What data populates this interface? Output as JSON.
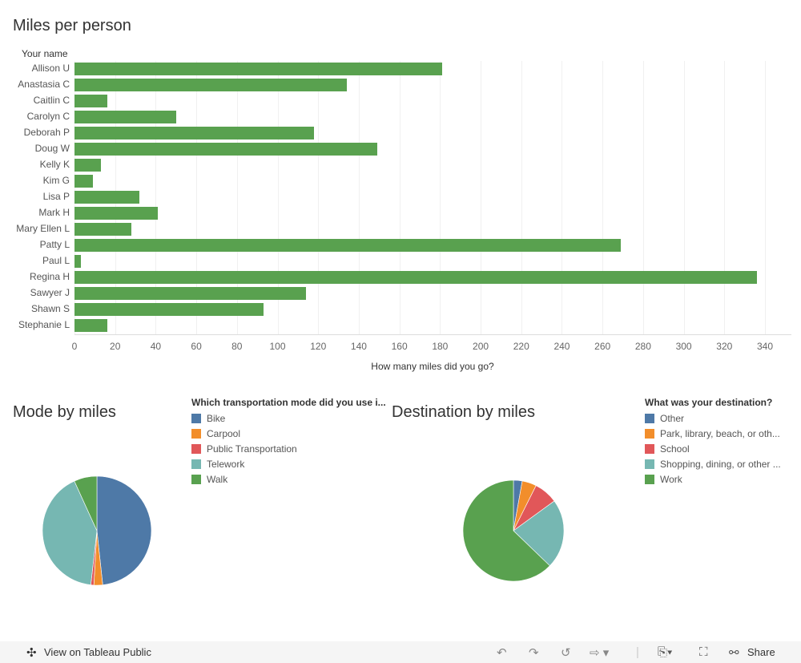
{
  "chart_data": [
    {
      "type": "bar",
      "title": "Miles per person",
      "ylabel": "Your name",
      "xlabel": "How many miles did you go?",
      "categories": [
        "Allison U",
        "Anastasia C",
        "Caitlin C",
        "Carolyn C",
        "Deborah P",
        "Doug W",
        "Kelly K",
        "Kim G",
        "Lisa P",
        "Mark H",
        "Mary Ellen L",
        "Patty L",
        "Paul L",
        "Regina H",
        "Sawyer J",
        "Shawn S",
        "Stephanie L"
      ],
      "values": [
        181,
        134,
        16,
        50,
        118,
        149,
        13,
        9,
        32,
        41,
        28,
        269,
        3,
        336,
        114,
        93,
        16
      ],
      "xlim": [
        0,
        350
      ],
      "xticks": [
        0,
        20,
        40,
        60,
        80,
        100,
        120,
        140,
        160,
        180,
        200,
        220,
        240,
        260,
        280,
        300,
        320,
        340
      ],
      "grid": true,
      "color": "#59a14f"
    },
    {
      "type": "pie",
      "title": "Mode by miles",
      "legend_title": "Which transportation mode did you use i...",
      "legend_placement": "right",
      "categories": [
        "Bike",
        "Carpool",
        "Public Transportation",
        "Telework",
        "Walk"
      ],
      "values": [
        48.3,
        2.6,
        0.9,
        41.4,
        6.8
      ],
      "colors": [
        "#4e79a7",
        "#f28e2b",
        "#e15759",
        "#76b7b2",
        "#59a14f"
      ]
    },
    {
      "type": "pie",
      "title": "Destination by miles",
      "legend_title": "What was your destination?",
      "legend_placement": "right",
      "categories": [
        "Other",
        "Park, library, beach, or oth...",
        "School",
        "Shopping, dining, or other ...",
        "Work"
      ],
      "values": [
        2.8,
        4.6,
        7.6,
        22.2,
        62.8
      ],
      "colors": [
        "#4e79a7",
        "#f28e2b",
        "#e15759",
        "#76b7b2",
        "#59a14f"
      ]
    }
  ],
  "toolbar": {
    "view_label": "View on Tableau Public",
    "share_label": "Share"
  }
}
